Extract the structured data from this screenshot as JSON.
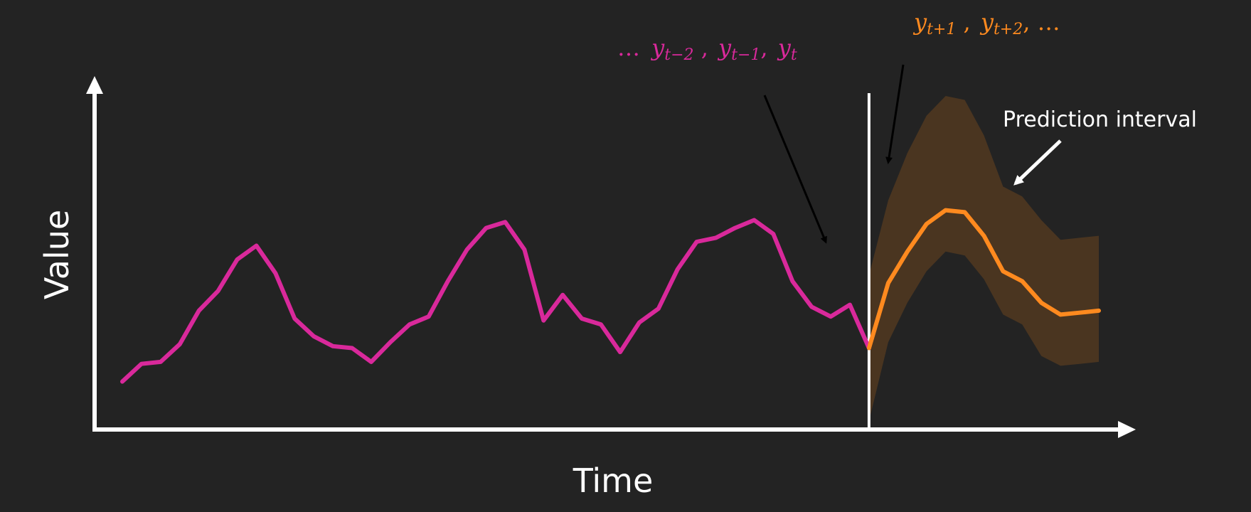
{
  "labels": {
    "x_axis": "Time",
    "y_axis": "Value",
    "prediction_interval": "Prediction interval"
  },
  "history_label": {
    "lead": "…",
    "terms": [
      {
        "base": "y",
        "sub": "t−2",
        "after": " ,"
      },
      {
        "base": "y",
        "sub": "t−1",
        "after": ","
      },
      {
        "base": "y",
        "sub": "t",
        "after": ""
      }
    ]
  },
  "forecast_label": {
    "terms": [
      {
        "base": "y",
        "sub": "t+1",
        "after": " ,"
      },
      {
        "base": "y",
        "sub": "t+2",
        "after": ", …"
      }
    ]
  },
  "colors": {
    "background": "#232323",
    "history_series": "#d9299b",
    "forecast_series": "#ff8a1f",
    "prediction_band": "#4a3520",
    "axes": "#ffffff",
    "pointer_history": "#000000",
    "pointer_forecast": "#000000",
    "pointer_interval": "#ffffff"
  },
  "chart_data": {
    "type": "line",
    "x_label": "Time",
    "y_label": "Value",
    "series": [
      {
        "role": "history",
        "points": [
          [
            0,
            2.0
          ],
          [
            1,
            2.9
          ],
          [
            2,
            3.0
          ],
          [
            3,
            3.9
          ],
          [
            4,
            5.6
          ],
          [
            5,
            6.6
          ],
          [
            6,
            8.2
          ],
          [
            7,
            8.9
          ],
          [
            8,
            7.5
          ],
          [
            9,
            5.2
          ],
          [
            10,
            4.3
          ],
          [
            11,
            3.8
          ],
          [
            12,
            3.7
          ],
          [
            13,
            3.0
          ],
          [
            14,
            4.0
          ],
          [
            15,
            4.9
          ],
          [
            16,
            5.3
          ],
          [
            17,
            7.1
          ],
          [
            18,
            8.7
          ],
          [
            19,
            9.8
          ],
          [
            20,
            10.1
          ],
          [
            21,
            8.7
          ],
          [
            22,
            5.1
          ],
          [
            23,
            6.4
          ],
          [
            24,
            5.2
          ],
          [
            25,
            4.9
          ],
          [
            26,
            3.5
          ],
          [
            27,
            5.0
          ],
          [
            28,
            5.7
          ],
          [
            29,
            7.7
          ],
          [
            30,
            9.1
          ],
          [
            31,
            9.3
          ],
          [
            32,
            9.8
          ],
          [
            33,
            10.2
          ],
          [
            34,
            9.5
          ],
          [
            35,
            7.1
          ],
          [
            36,
            5.8
          ],
          [
            37,
            5.3
          ],
          [
            38,
            5.9
          ],
          [
            39,
            3.7
          ]
        ]
      },
      {
        "role": "forecast",
        "points": [
          [
            39,
            3.7
          ],
          [
            40,
            7.0
          ],
          [
            41,
            8.6
          ],
          [
            42,
            10.0
          ],
          [
            43,
            10.7
          ],
          [
            44,
            10.6
          ],
          [
            45,
            9.4
          ],
          [
            46,
            7.6
          ],
          [
            47,
            7.1
          ],
          [
            48,
            6.0
          ],
          [
            49,
            5.4
          ],
          [
            50,
            5.5
          ],
          [
            51,
            5.6
          ]
        ]
      }
    ],
    "prediction_interval": {
      "x": [
        39,
        40,
        41,
        42,
        43,
        44,
        45,
        46,
        47,
        48,
        49,
        50,
        51
      ],
      "upper": [
        7.4,
        11.2,
        13.6,
        15.5,
        16.5,
        16.3,
        14.5,
        11.9,
        11.4,
        10.2,
        9.2,
        9.3,
        9.4
      ],
      "lower": [
        0.0,
        4.0,
        6.0,
        7.6,
        8.6,
        8.4,
        7.2,
        5.4,
        4.9,
        3.3,
        2.8,
        2.9,
        3.0
      ]
    },
    "present_marker_x": 39,
    "xlim": [
      0,
      51
    ],
    "ylim": [
      0,
      16.5
    ],
    "grid": false,
    "legend": "none"
  }
}
